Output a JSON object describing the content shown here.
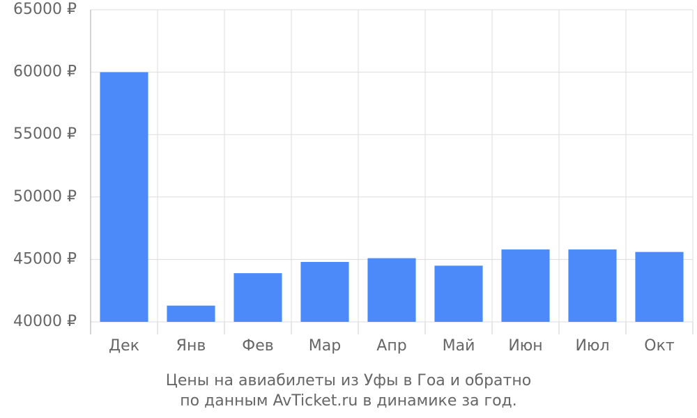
{
  "chart_data": {
    "type": "bar",
    "title": "Цены на авиабилеты из Уфы в Гоа и обратно",
    "subtitle": "по данным AvTicket.ru в динамике за год.",
    "categories": [
      "Дек",
      "Янв",
      "Фев",
      "Мар",
      "Апр",
      "Май",
      "Июн",
      "Июл",
      "Окт"
    ],
    "values": [
      60000,
      41300,
      43900,
      44800,
      45100,
      44500,
      45800,
      45800,
      45600
    ],
    "color": "#4d8af9",
    "ylim": [
      40000,
      65000
    ],
    "yticks": [
      {
        "value": 40000,
        "label": "40000 ₽"
      },
      {
        "value": 45000,
        "label": "45000 ₽"
      },
      {
        "value": 50000,
        "label": "50000 ₽"
      },
      {
        "value": 55000,
        "label": "55000 ₽"
      },
      {
        "value": 60000,
        "label": "60000 ₽"
      },
      {
        "value": 65000,
        "label": "65000 ₽"
      }
    ],
    "grid": true
  }
}
